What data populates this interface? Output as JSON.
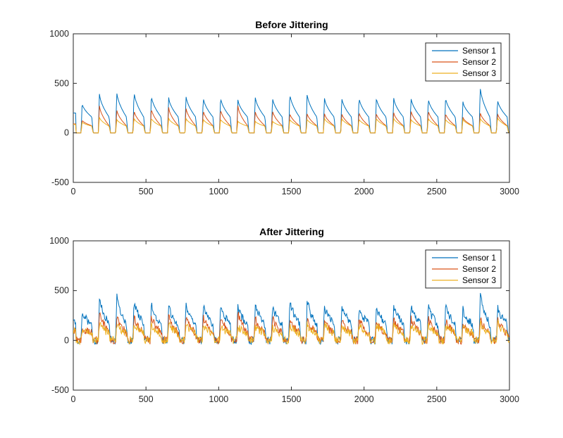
{
  "colors": {
    "sensor_1": "#0072BD",
    "sensor_2": "#D95319",
    "sensor_3": "#EDB120",
    "axes": "#262626",
    "background": "#ffffff"
  },
  "chart_data": [
    {
      "type": "line",
      "title": "Before Jittering",
      "xlim": [
        0,
        3000
      ],
      "ylim": [
        -500,
        1000
      ],
      "xticks": [
        0,
        500,
        1000,
        1500,
        2000,
        2500,
        3000
      ],
      "yticks": [
        -500,
        0,
        500,
        1000
      ],
      "xtick_labels": [
        "0",
        "500",
        "1000",
        "1500",
        "2000",
        "2500",
        "3000"
      ],
      "ytick_labels": [
        "-500",
        "0",
        "500",
        "1000"
      ],
      "grid": false,
      "legend_position": "top-right",
      "noise": 0,
      "series": [
        {
          "name": "Sensor 1",
          "color": "#0072BD",
          "baseline": 200,
          "peaks": [
            300,
            400,
            420,
            420,
            380,
            360,
            380,
            360,
            360,
            340,
            370,
            360,
            400,
            400,
            360,
            360,
            360,
            360,
            360,
            360,
            350,
            360,
            320,
            470,
            340
          ]
        },
        {
          "name": "Sensor 2",
          "color": "#D95319",
          "baseline": 90,
          "peaks": [
            130,
            280,
            240,
            230,
            250,
            260,
            260,
            230,
            240,
            280,
            220,
            230,
            200,
            200,
            200,
            200,
            210,
            200,
            210,
            230,
            230,
            200,
            160,
            210,
            200
          ]
        },
        {
          "name": "Sensor 3",
          "color": "#EDB120",
          "baseline": 85,
          "peaks": [
            110,
            160,
            140,
            150,
            150,
            150,
            150,
            140,
            140,
            120,
            120,
            120,
            140,
            140,
            150,
            150,
            140,
            150,
            150,
            140,
            150,
            140,
            140,
            150,
            160
          ]
        }
      ]
    },
    {
      "type": "line",
      "title": "After Jittering",
      "xlim": [
        0,
        3000
      ],
      "ylim": [
        -500,
        1000
      ],
      "xticks": [
        0,
        500,
        1000,
        1500,
        2000,
        2500,
        3000
      ],
      "yticks": [
        -500,
        0,
        500,
        1000
      ],
      "xtick_labels": [
        "0",
        "500",
        "1000",
        "1500",
        "2000",
        "2500",
        "3000"
      ],
      "ytick_labels": [
        "-500",
        "0",
        "500",
        "1000"
      ],
      "grid": false,
      "legend_position": "top-right",
      "noise": 40,
      "series": [
        {
          "name": "Sensor 1",
          "color": "#0072BD",
          "baseline": 200,
          "peaks": [
            300,
            440,
            460,
            420,
            380,
            360,
            380,
            360,
            360,
            340,
            370,
            360,
            420,
            420,
            360,
            360,
            360,
            360,
            360,
            360,
            350,
            360,
            320,
            490,
            340
          ]
        },
        {
          "name": "Sensor 2",
          "color": "#D95319",
          "baseline": 90,
          "peaks": [
            130,
            300,
            260,
            250,
            260,
            270,
            270,
            240,
            250,
            290,
            230,
            240,
            220,
            220,
            210,
            210,
            220,
            210,
            220,
            240,
            240,
            210,
            170,
            230,
            210
          ]
        },
        {
          "name": "Sensor 3",
          "color": "#EDB120",
          "baseline": 85,
          "peaks": [
            110,
            180,
            160,
            170,
            170,
            170,
            170,
            160,
            160,
            140,
            140,
            140,
            160,
            160,
            170,
            170,
            160,
            170,
            170,
            160,
            170,
            160,
            160,
            170,
            180
          ]
        }
      ]
    }
  ]
}
